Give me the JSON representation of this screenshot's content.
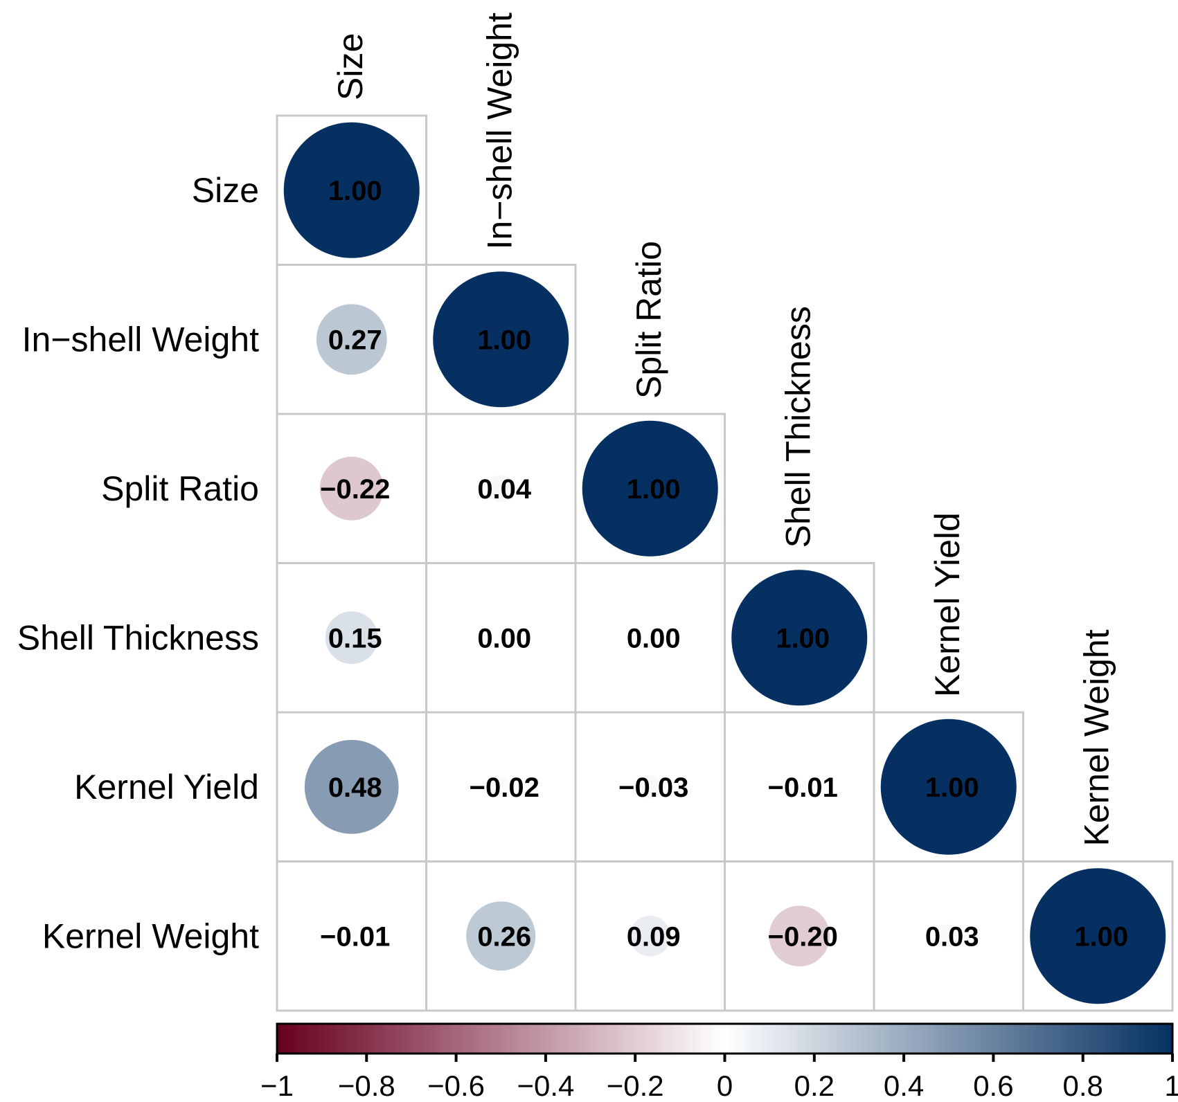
{
  "chart_data": {
    "type": "heatmap",
    "subtype": "correlation-matrix-lower-circle",
    "variables": [
      "Size",
      "In−shell Weight",
      "Split Ratio",
      "Shell Thickness",
      "Kernel Yield",
      "Kernel Weight"
    ],
    "matrix": [
      [
        1.0,
        null,
        null,
        null,
        null,
        null
      ],
      [
        0.27,
        1.0,
        null,
        null,
        null,
        null
      ],
      [
        -0.22,
        0.04,
        1.0,
        null,
        null,
        null
      ],
      [
        0.15,
        0.0,
        0.0,
        1.0,
        null,
        null
      ],
      [
        0.48,
        -0.02,
        -0.03,
        -0.01,
        1.0,
        null
      ],
      [
        -0.01,
        0.26,
        0.09,
        -0.2,
        0.03,
        1.0
      ]
    ],
    "colorbar": {
      "range": [
        -1,
        1
      ],
      "ticks": [
        -1,
        -0.8,
        -0.6,
        -0.4,
        -0.2,
        0,
        0.2,
        0.4,
        0.6,
        0.8,
        1
      ],
      "tick_labels": [
        "−1",
        "−0.8",
        "−0.6",
        "−0.4",
        "−0.2",
        "0",
        "0.2",
        "0.4",
        "0.6",
        "0.8",
        "1"
      ],
      "placement": "bottom"
    },
    "colors": {
      "negative": "#67001F",
      "zero": "#FFFFFF",
      "positive": "#053061",
      "grid": "#C8C8C8"
    }
  }
}
